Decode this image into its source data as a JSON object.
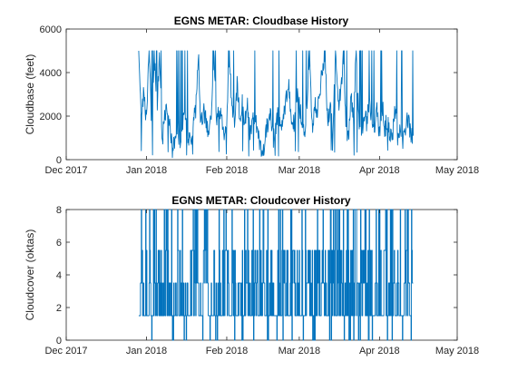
{
  "chart_data": [
    {
      "type": "line",
      "title": "EGNS METAR: Cloudbase History",
      "ylabel": "Cloudbase (feet)",
      "xlabel": "",
      "xlim": [
        "2017-12-01",
        "2018-05-01"
      ],
      "ylim": [
        0,
        6000
      ],
      "xticks": [
        "2017-12-01",
        "2018-01-01",
        "2018-02-01",
        "2018-03-01",
        "2018-04-01",
        "2018-05-01"
      ],
      "xtick_labels": [
        "Dec 2017",
        "Jan 2018",
        "Feb 2018",
        "Mar 2018",
        "Apr 2018",
        "May 2018"
      ],
      "yticks": [
        0,
        2000,
        4000,
        6000
      ],
      "ytick_labels": [
        "0",
        "2000",
        "4000",
        "6000"
      ],
      "grid": false,
      "legend": "none",
      "color": "#0072BD",
      "data_range": {
        "x": [
          "2017-12-29",
          "2018-04-14"
        ],
        "y": [
          0,
          5000
        ]
      },
      "series": [
        {
          "x": [
            "2017-12-29",
            "2017-12-30",
            "2017-12-31",
            "2018-01-01",
            "2018-01-02",
            "2018-01-03",
            "2018-01-04",
            "2018-01-05",
            "2018-01-06",
            "2018-01-07",
            "2018-01-08",
            "2018-01-09",
            "2018-01-10",
            "2018-01-11",
            "2018-01-12",
            "2018-01-13",
            "2018-01-14",
            "2018-01-15",
            "2018-01-16",
            "2018-01-17",
            "2018-01-18",
            "2018-01-19",
            "2018-01-20",
            "2018-01-21",
            "2018-01-22",
            "2018-01-23",
            "2018-01-24",
            "2018-01-25",
            "2018-01-26",
            "2018-01-27",
            "2018-01-28",
            "2018-01-29",
            "2018-01-30",
            "2018-01-31",
            "2018-02-01",
            "2018-02-02",
            "2018-02-03",
            "2018-02-04",
            "2018-02-05",
            "2018-02-06",
            "2018-02-07",
            "2018-02-08",
            "2018-02-09",
            "2018-02-10",
            "2018-02-11",
            "2018-02-12",
            "2018-02-13",
            "2018-02-14",
            "2018-02-15",
            "2018-02-16",
            "2018-02-17",
            "2018-02-18",
            "2018-02-19",
            "2018-02-20",
            "2018-02-21",
            "2018-02-22",
            "2018-02-23",
            "2018-02-24",
            "2018-02-25",
            "2018-02-26",
            "2018-02-27",
            "2018-02-28",
            "2018-03-01",
            "2018-03-02",
            "2018-03-03",
            "2018-03-04",
            "2018-03-05",
            "2018-03-06",
            "2018-03-07",
            "2018-03-08",
            "2018-03-09",
            "2018-03-10",
            "2018-03-11",
            "2018-03-12",
            "2018-03-13",
            "2018-03-14",
            "2018-03-15",
            "2018-03-16",
            "2018-03-17",
            "2018-03-18",
            "2018-03-19",
            "2018-03-20",
            "2018-03-21",
            "2018-03-22",
            "2018-03-23",
            "2018-03-24",
            "2018-03-25",
            "2018-03-26",
            "2018-03-27",
            "2018-03-28",
            "2018-03-29",
            "2018-03-30",
            "2018-03-31",
            "2018-04-01",
            "2018-04-02",
            "2018-04-03",
            "2018-04-04",
            "2018-04-05",
            "2018-04-06",
            "2018-04-07",
            "2018-04-08",
            "2018-04-09",
            "2018-04-10",
            "2018-04-11",
            "2018-04-12",
            "2018-04-13",
            "2018-04-14"
          ],
          "y": [
            5000,
            2200,
            3000,
            1800,
            5000,
            1500,
            5000,
            2000,
            5000,
            800,
            1900,
            2500,
            1700,
            400,
            1000,
            1400,
            900,
            1600,
            2000,
            1200,
            800,
            1700,
            2200,
            5000,
            1500,
            2300,
            1800,
            1000,
            2200,
            5000,
            1600,
            2600,
            1900,
            1300,
            2000,
            5000,
            2300,
            1600,
            3400,
            1900,
            2600,
            1700,
            2400,
            1200,
            1700,
            2100,
            1000,
            700,
            300,
            1300,
            1700,
            2100,
            900,
            1500,
            2300,
            1200,
            2000,
            3000,
            3300,
            2000,
            1600,
            3000,
            2600,
            1800,
            900,
            2500,
            5000,
            1400,
            2600,
            2200,
            3200,
            4200,
            5000,
            1500,
            2700,
            1200,
            5000,
            2400,
            3000,
            4800,
            1700,
            900,
            2900,
            2000,
            5000,
            1700,
            900,
            2000,
            1700,
            2500,
            2100,
            1300,
            2400,
            1100,
            2600,
            1400,
            1800,
            1000,
            900,
            2600,
            900,
            1500,
            700,
            1400,
            1900,
            1200,
            1100
          ]
        }
      ]
    },
    {
      "type": "line",
      "title": "EGNS METAR: Cloudcover History",
      "ylabel": "Cloudcover (oktas)",
      "xlabel": "",
      "xlim": [
        "2017-12-01",
        "2018-05-01"
      ],
      "ylim": [
        0,
        8
      ],
      "xticks": [
        "2017-12-01",
        "2018-01-01",
        "2018-02-01",
        "2018-03-01",
        "2018-04-01",
        "2018-05-01"
      ],
      "xtick_labels": [
        "Dec 2017",
        "Jan 2018",
        "Feb 2018",
        "Mar 2018",
        "Apr 2018",
        "May 2018"
      ],
      "yticks": [
        0,
        2,
        4,
        6,
        8
      ],
      "ytick_labels": [
        "0",
        "2",
        "4",
        "6",
        "8"
      ],
      "grid": false,
      "legend": "none",
      "color": "#0072BD",
      "levels": [
        0,
        1.5,
        3.5,
        5.5,
        8
      ],
      "data_range": {
        "x": [
          "2017-12-29",
          "2018-04-14"
        ],
        "y": [
          0,
          8
        ]
      },
      "series": [
        {
          "x": [
            "2017-12-29",
            "2017-12-30",
            "2017-12-31",
            "2018-01-01",
            "2018-01-02",
            "2018-01-03",
            "2018-01-04",
            "2018-01-05",
            "2018-01-06",
            "2018-01-07",
            "2018-01-08",
            "2018-01-09",
            "2018-01-10",
            "2018-01-11",
            "2018-01-12",
            "2018-01-13",
            "2018-01-14",
            "2018-01-15",
            "2018-01-16",
            "2018-01-17",
            "2018-01-18",
            "2018-01-19",
            "2018-01-20",
            "2018-01-21",
            "2018-01-22",
            "2018-01-23",
            "2018-01-24",
            "2018-01-25",
            "2018-01-26",
            "2018-01-27",
            "2018-01-28",
            "2018-01-29",
            "2018-01-30",
            "2018-01-31",
            "2018-02-01",
            "2018-02-02",
            "2018-02-03",
            "2018-02-04",
            "2018-02-05",
            "2018-02-06",
            "2018-02-07",
            "2018-02-08",
            "2018-02-09",
            "2018-02-10",
            "2018-02-11",
            "2018-02-12",
            "2018-02-13",
            "2018-02-14",
            "2018-02-15",
            "2018-02-16",
            "2018-02-17",
            "2018-02-18",
            "2018-02-19",
            "2018-02-20",
            "2018-02-21",
            "2018-02-22",
            "2018-02-23",
            "2018-02-24",
            "2018-02-25",
            "2018-02-26",
            "2018-02-27",
            "2018-02-28",
            "2018-03-01",
            "2018-03-02",
            "2018-03-03",
            "2018-03-04",
            "2018-03-05",
            "2018-03-06",
            "2018-03-07",
            "2018-03-08",
            "2018-03-09",
            "2018-03-10",
            "2018-03-11",
            "2018-03-12",
            "2018-03-13",
            "2018-03-14",
            "2018-03-15",
            "2018-03-16",
            "2018-03-17",
            "2018-03-18",
            "2018-03-19",
            "2018-03-20",
            "2018-03-21",
            "2018-03-22",
            "2018-03-23",
            "2018-03-24",
            "2018-03-25",
            "2018-03-26",
            "2018-03-27",
            "2018-03-28",
            "2018-03-29",
            "2018-03-30",
            "2018-03-31",
            "2018-04-01",
            "2018-04-02",
            "2018-04-03",
            "2018-04-04",
            "2018-04-05",
            "2018-04-06",
            "2018-04-07",
            "2018-04-08",
            "2018-04-09",
            "2018-04-10",
            "2018-04-11",
            "2018-04-12",
            "2018-04-13",
            "2018-04-14"
          ],
          "y": [
            1.5,
            8,
            1.5,
            5.5,
            3.5,
            0,
            8,
            1.5,
            5.5,
            3.5,
            8,
            1.5,
            3.5,
            0,
            1.5,
            8,
            5.5,
            1.5,
            3.5,
            1.5,
            5.5,
            8,
            1.5,
            3.5,
            1.5,
            5.5,
            8,
            1.5,
            3.5,
            5.5,
            1.5,
            8,
            1.5,
            3.5,
            5.5,
            1.5,
            8,
            0,
            1.5,
            3.5,
            5.5,
            1.5,
            8,
            3.5,
            1.5,
            5.5,
            1.5,
            3.5,
            8,
            1.5,
            0,
            5.5,
            3.5,
            1.5,
            8,
            1.5,
            5.5,
            3.5,
            1.5,
            8,
            3.5,
            1.5,
            5.5,
            8,
            1.5,
            3.5,
            1.5,
            5.5,
            0,
            8,
            1.5,
            3.5,
            5.5,
            1.5,
            8,
            3.5,
            1.5,
            5.5,
            1.5,
            8,
            3.5,
            5.5,
            1.5,
            0,
            8,
            1.5,
            5.5,
            3.5,
            1.5,
            8,
            5.5,
            1.5,
            3.5,
            8,
            1.5,
            5.5,
            0,
            3.5,
            8,
            1.5,
            5.5,
            8,
            1.5,
            3.5,
            8,
            1.5,
            3.5
          ]
        }
      ]
    }
  ]
}
